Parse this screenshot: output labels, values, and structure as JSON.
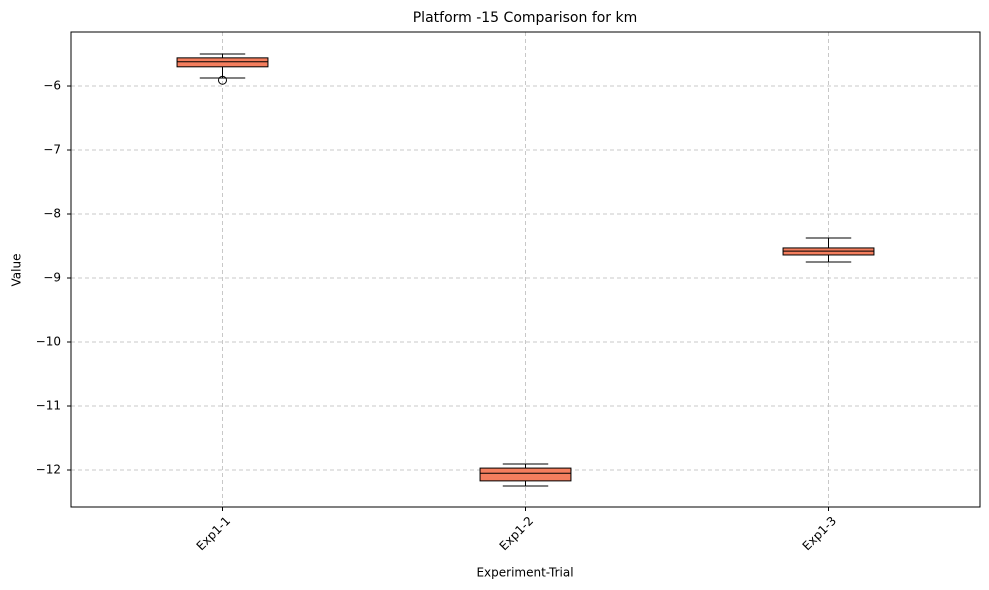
{
  "chart_data": {
    "type": "box",
    "title": "Platform -15 Comparison for km",
    "x_label": "Experiment-Trial",
    "y_label": "Value",
    "categories": [
      "Exp1-1",
      "Exp1-2",
      "Exp1-3"
    ],
    "boxes": [
      {
        "whislo": -5.875,
        "q1": -5.7,
        "med": -5.62,
        "q3": -5.56,
        "whishi": -5.5,
        "fliers": [
          -5.91
        ]
      },
      {
        "whislo": -12.25,
        "q1": -12.17,
        "med": -12.05,
        "q3": -11.97,
        "whishi": -11.906,
        "fliers": []
      },
      {
        "whislo": -8.75,
        "q1": -8.64,
        "med": -8.58,
        "q3": -8.53,
        "whishi": -8.375,
        "fliers": []
      }
    ],
    "color": "#f47e5e",
    "ylim": [
      -12.578,
      -5.156
    ],
    "yticks": [
      {
        "value": -12,
        "label": "−12"
      },
      {
        "value": -11,
        "label": "−11"
      },
      {
        "value": -10,
        "label": "−10"
      },
      {
        "value": -9,
        "label": "−9"
      },
      {
        "value": -8,
        "label": "−8"
      },
      {
        "value": -7,
        "label": "−7"
      },
      {
        "value": -6,
        "label": "−6"
      }
    ],
    "grid": true
  }
}
